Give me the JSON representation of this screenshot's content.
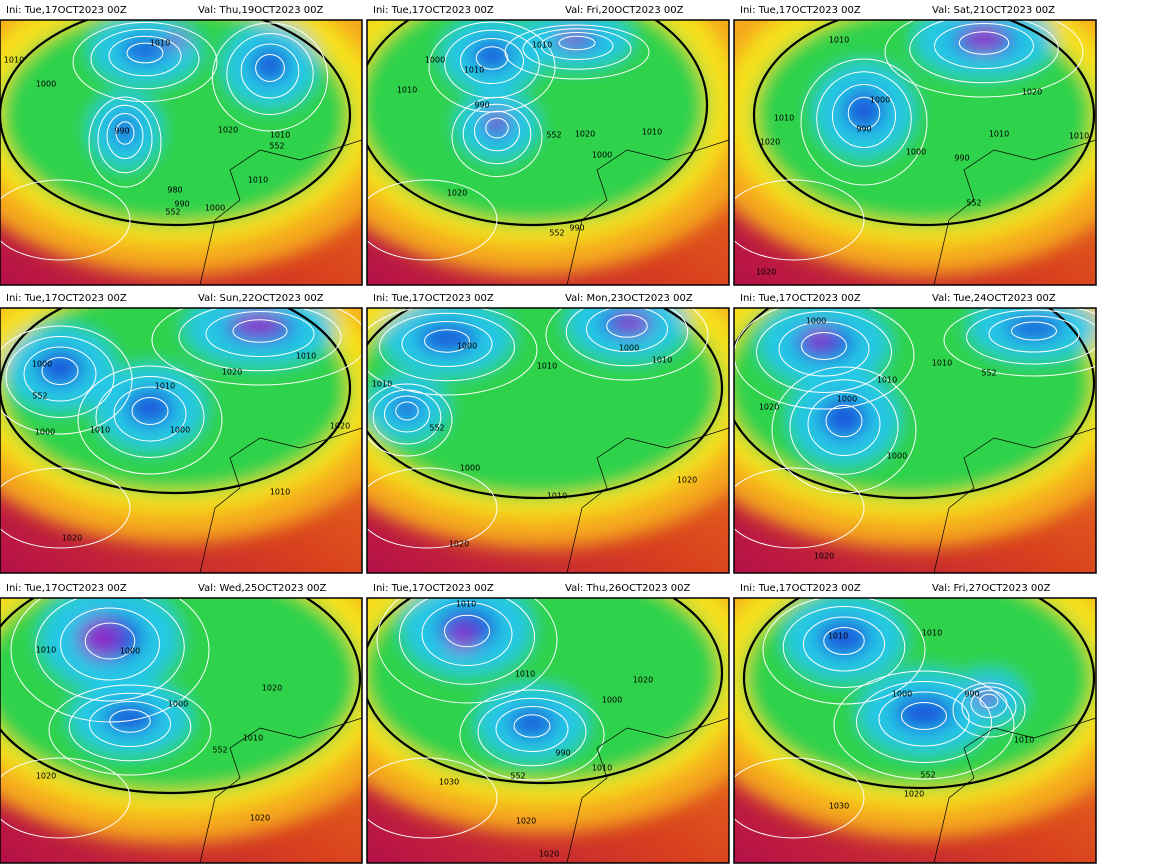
{
  "panels": [
    {
      "init": "Ini: Tue,17OCT2023 00Z",
      "valid": "Val: Thu,19OCT2023 00Z",
      "labels": [
        "1010",
        "1010",
        "1000",
        "990",
        "1020",
        "552",
        "1010",
        "1010",
        "980",
        "990",
        "552",
        "1000"
      ]
    },
    {
      "init": "Ini: Tue,17OCT2023 00Z",
      "valid": "Val: Fri,20OCT2023 00Z",
      "labels": [
        "1010",
        "1000",
        "1010",
        "1010",
        "990",
        "552",
        "1020",
        "1010",
        "1000",
        "1020",
        "990",
        "552"
      ]
    },
    {
      "init": "Ini: Tue,17OCT2023 00Z",
      "valid": "Val: Sat,21OCT2023 00Z",
      "labels": [
        "1010",
        "1020",
        "1000",
        "1010",
        "990",
        "1020",
        "1010",
        "1000",
        "990",
        "1010",
        "552",
        "1020"
      ]
    },
    {
      "init": "Ini: Tue,17OCT2023 00Z",
      "valid": "Val: Sun,22OCT2023 00Z",
      "labels": [
        "552",
        "1000",
        "1010",
        "1010",
        "1020",
        "1000",
        "1010",
        "1000",
        "1020",
        "1010",
        "1020"
      ]
    },
    {
      "init": "Ini: Tue,17OCT2023 00Z",
      "valid": "Val: Mon,23OCT2023 00Z",
      "labels": [
        "1000",
        "1000",
        "1010",
        "1010",
        "552",
        "1010",
        "1000",
        "1020",
        "1010",
        "1020"
      ]
    },
    {
      "init": "Ini: Tue,17OCT2023 00Z",
      "valid": "Val: Tue,24OCT2023 00Z",
      "labels": [
        "1000",
        "1010",
        "1010",
        "552",
        "1020",
        "1000",
        "1000",
        "1020"
      ]
    },
    {
      "init": "Ini: Tue,17OCT2023 00Z",
      "valid": "Val: Wed,25OCT2023 00Z",
      "labels": [
        "1010",
        "1000",
        "1020",
        "1000",
        "552",
        "1010",
        "1020",
        "1020"
      ]
    },
    {
      "init": "Ini: Tue,17OCT2023 00Z",
      "valid": "Val: Thu,26OCT2023 00Z",
      "labels": [
        "1010",
        "1010",
        "1020",
        "1000",
        "990",
        "1010",
        "1030",
        "552",
        "1020",
        "1020"
      ]
    },
    {
      "init": "Ini: Tue,17OCT2023 00Z",
      "valid": "Val: Fri,27OCT2023 00Z",
      "labels": [
        "1010",
        "1010",
        "1000",
        "990",
        "1010",
        "552",
        "1030",
        "1020"
      ]
    }
  ]
}
